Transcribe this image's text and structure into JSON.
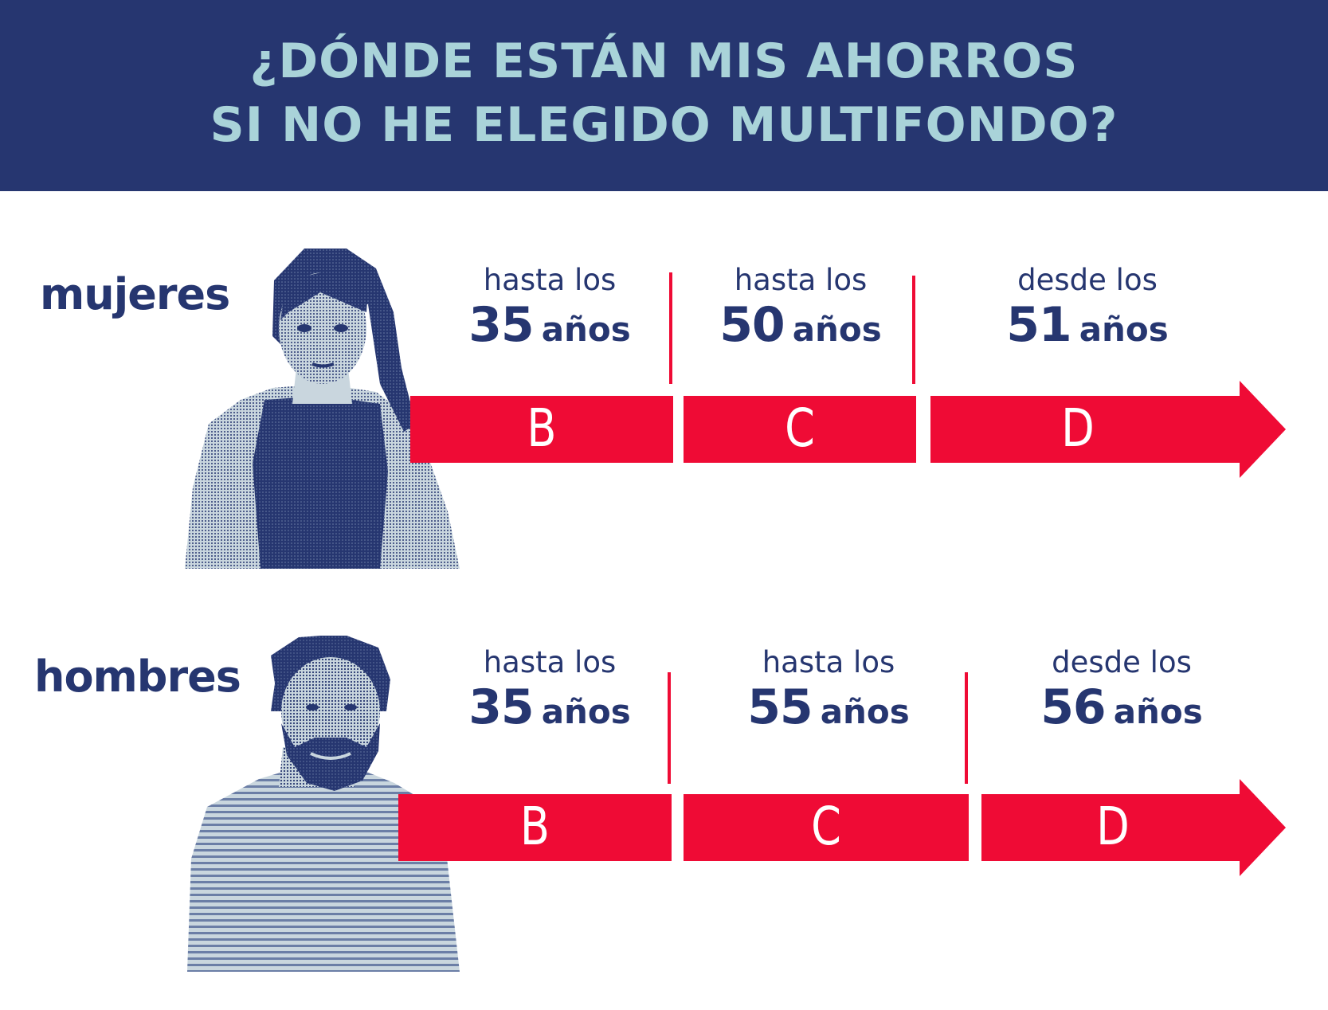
{
  "title": {
    "line1": "¿DÓNDE ESTÁN MIS AHORROS",
    "line2": "SI NO HE ELEGIDO MULTIFONDO?"
  },
  "rows": [
    {
      "label": "mujeres",
      "stages": [
        {
          "prefix": "hasta los",
          "age": "35",
          "unit": "años",
          "fund": "B"
        },
        {
          "prefix": "hasta los",
          "age": "50",
          "unit": "años",
          "fund": "C"
        },
        {
          "prefix": "desde los",
          "age": "51",
          "unit": "años",
          "fund": "D"
        }
      ]
    },
    {
      "label": "hombres",
      "stages": [
        {
          "prefix": "hasta los",
          "age": "35",
          "unit": "años",
          "fund": "B"
        },
        {
          "prefix": "hasta los",
          "age": "55",
          "unit": "años",
          "fund": "C"
        },
        {
          "prefix": "desde los",
          "age": "56",
          "unit": "años",
          "fund": "D"
        }
      ]
    }
  ],
  "colors": {
    "navy": "#263670",
    "light_blue": "#a9d3d9",
    "red": "#ef0b35",
    "photo_light": "#c9d6de"
  },
  "images": {
    "row1": "woman-halftone-photo",
    "row2": "man-halftone-photo"
  }
}
